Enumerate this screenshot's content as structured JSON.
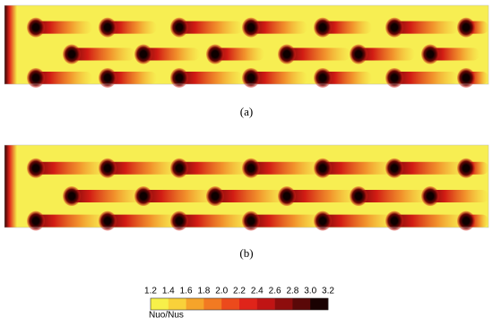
{
  "panels": [
    {
      "label": "(a)"
    },
    {
      "label": "(b)"
    }
  ],
  "colorbar": {
    "title": "Nuo/Nus",
    "ticks": [
      "1.2",
      "1.4",
      "1.6",
      "1.8",
      "2.0",
      "2.2",
      "2.4",
      "2.6",
      "2.8",
      "3.0",
      "3.2"
    ],
    "colors": [
      "#f7f04a",
      "#f9d13a",
      "#f6a42a",
      "#f27a22",
      "#ec4a1c",
      "#e0241a",
      "#c01414",
      "#8e0d0d",
      "#5a0808",
      "#1a0202"
    ]
  }
}
